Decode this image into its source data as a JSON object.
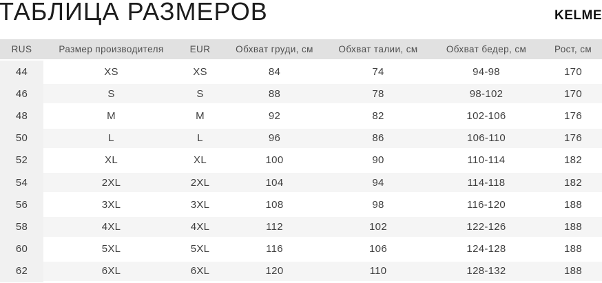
{
  "ui": {
    "brand": "KELME"
  },
  "chart_data": {
    "type": "table",
    "title": "ТАБЛИЦА РАЗМЕРОВ",
    "columns": [
      "RUS",
      "Размер производителя",
      "EUR",
      "Обхват груди, см",
      "Обхват талии, см",
      "Обхват бедер, см",
      "Рост, см"
    ],
    "rows": [
      [
        "44",
        "XS",
        "XS",
        "84",
        "74",
        "94-98",
        "170"
      ],
      [
        "46",
        "S",
        "S",
        "88",
        "78",
        "98-102",
        "170"
      ],
      [
        "48",
        "M",
        "M",
        "92",
        "82",
        "102-106",
        "176"
      ],
      [
        "50",
        "L",
        "L",
        "96",
        "86",
        "106-110",
        "176"
      ],
      [
        "52",
        "XL",
        "XL",
        "100",
        "90",
        "110-114",
        "182"
      ],
      [
        "54",
        "2XL",
        "2XL",
        "104",
        "94",
        "114-118",
        "182"
      ],
      [
        "56",
        "3XL",
        "3XL",
        "108",
        "98",
        "116-120",
        "188"
      ],
      [
        "58",
        "4XL",
        "4XL",
        "112",
        "102",
        "122-126",
        "188"
      ],
      [
        "60",
        "5XL",
        "5XL",
        "116",
        "106",
        "124-128",
        "188"
      ],
      [
        "62",
        "6XL",
        "6XL",
        "120",
        "110",
        "128-132",
        "188"
      ]
    ],
    "layout": {
      "striped": true,
      "first_column_shaded": true,
      "header_row_shaded": true
    }
  },
  "colors": {
    "header_bg": "#e1e1e1",
    "first_col_bg": "#f1f1f1",
    "stripe_bg": "#f5f5f5",
    "row_bg": "#ffffff",
    "cell_text": "#3f3f3f",
    "header_text": "#4f4f4f",
    "title_text": "#1c1c1c"
  }
}
